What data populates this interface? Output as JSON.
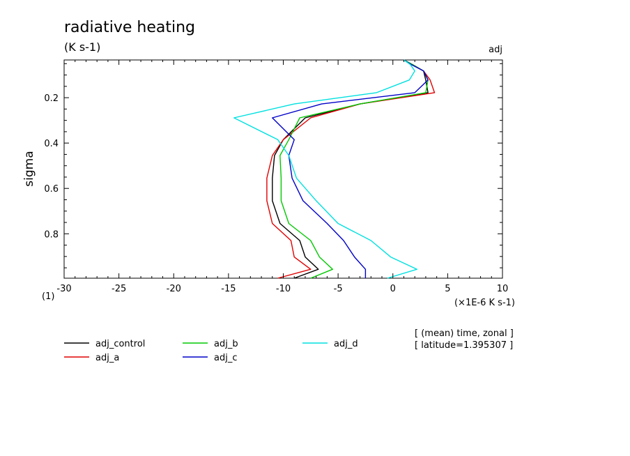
{
  "header": {
    "title": "radiative heating",
    "units": "(K s-1)",
    "tag": "adj"
  },
  "note": {
    "line1": "[ (mean) time, zonal ]",
    "line2": "[ latitude=1.395307 ]"
  },
  "chart_data": {
    "type": "line",
    "title": "radiative heating",
    "xlabel": "(×1E-6 K s-1)",
    "xlabel_prefix": "(1)",
    "ylabel": "sigma",
    "xlim": [
      -30,
      10
    ],
    "ylim": [
      0.9958,
      0.0337
    ],
    "y_inverted": true,
    "x_ticks": [
      -30,
      -25,
      -20,
      -15,
      -10,
      -5,
      0,
      5,
      10
    ],
    "x_tick_labels": [
      "-30",
      "-25",
      "-20",
      "-15",
      "-10",
      "-5",
      "0",
      "5",
      "10"
    ],
    "y_ticks": [
      0.2,
      0.4,
      0.6,
      0.8
    ],
    "y_tick_labels": [
      "0.2",
      "0.4",
      "0.6",
      "0.8"
    ],
    "grid": false,
    "legend_position": "bottom",
    "y": [
      0.0337,
      0.0544,
      0.0822,
      0.1218,
      0.1778,
      0.2278,
      0.2888,
      0.3849,
      0.4549,
      0.5545,
      0.6544,
      0.7544,
      0.8299,
      0.9024,
      0.9566,
      0.9958
    ],
    "series": [
      {
        "name": "adj_control",
        "color": "#000000",
        "values": [
          1.0,
          1.8,
          2.8,
          3.0,
          3.2,
          -3.0,
          -8.0,
          -10.0,
          -10.8,
          -11.0,
          -11.0,
          -10.3,
          -8.5,
          -8.0,
          -6.8,
          -9.0
        ]
      },
      {
        "name": "adj_a",
        "color": "#e00000",
        "values": [
          1.0,
          1.8,
          2.8,
          3.4,
          3.8,
          -3.0,
          -7.5,
          -10.0,
          -11.0,
          -11.5,
          -11.5,
          -11.0,
          -9.3,
          -9.0,
          -7.5,
          -10.5
        ]
      },
      {
        "name": "adj_b",
        "color": "#00c800",
        "values": [
          1.0,
          1.8,
          2.8,
          3.2,
          3.0,
          -3.0,
          -8.5,
          -9.5,
          -10.3,
          -10.2,
          -10.2,
          -9.5,
          -7.5,
          -6.7,
          -5.5,
          -7.5
        ]
      },
      {
        "name": "adj_c",
        "color": "#0000c8",
        "values": [
          1.0,
          1.7,
          2.8,
          3.2,
          2.0,
          -6.5,
          -11.0,
          -9.0,
          -9.5,
          -9.2,
          -8.2,
          -6.0,
          -4.5,
          -3.5,
          -2.5,
          -2.5
        ]
      },
      {
        "name": "adj_d",
        "color": "#00e0e0",
        "values": [
          1.0,
          1.6,
          2.0,
          1.5,
          -1.5,
          -9.0,
          -14.5,
          -10.5,
          -9.5,
          -8.8,
          -7.0,
          -5.0,
          -2.0,
          -0.2,
          2.2,
          -0.5
        ]
      }
    ]
  }
}
